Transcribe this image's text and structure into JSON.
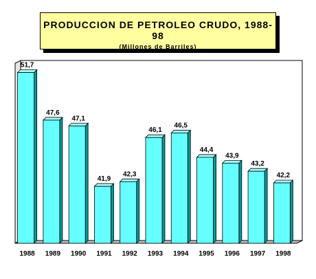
{
  "chart_data": {
    "type": "bar",
    "title": "PRODUCCION DE PETROLEO CRUDO, 1988-98",
    "subtitle": "(Millones de Barriles)",
    "categories": [
      "1988",
      "1989",
      "1990",
      "1991",
      "1992",
      "1993",
      "1994",
      "1995",
      "1996",
      "1997",
      "1998"
    ],
    "values": [
      51.7,
      47.6,
      47.1,
      41.9,
      42.3,
      46.1,
      46.5,
      44.4,
      43.9,
      43.2,
      42.2
    ],
    "value_labels": [
      "51,7",
      "47,6",
      "47,1",
      "41,9",
      "42,3",
      "46,1",
      "46,5",
      "44,4",
      "43,9",
      "43,2",
      "42,2"
    ],
    "xlabel": "",
    "ylabel": "",
    "ylim": [
      37,
      52.5
    ],
    "grid": false,
    "legend": "none",
    "colors": {
      "bar_front": "#66ffff",
      "bar_side": "#009999",
      "bar_top": "#a8ffff",
      "title_bg": "#ffffa0",
      "wall": "#ffffff",
      "floor": "#c0c0c0"
    }
  }
}
